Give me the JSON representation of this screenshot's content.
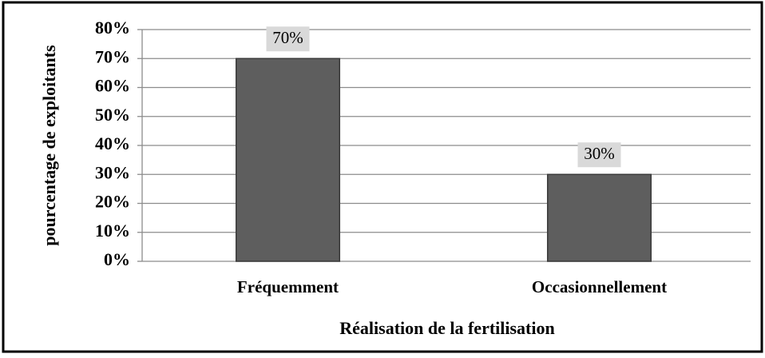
{
  "chart_data": {
    "type": "bar",
    "categories": [
      "Fréquemment",
      "Occasionnellement"
    ],
    "values": [
      70,
      30
    ],
    "value_labels": [
      "70%",
      "30%"
    ],
    "color": "#5e5e5e",
    "ylim": [
      0,
      80
    ],
    "yticks": [
      {
        "value": 0,
        "label": "0%"
      },
      {
        "value": 10,
        "label": "10%"
      },
      {
        "value": 20,
        "label": "20%"
      },
      {
        "value": 30,
        "label": "30%"
      },
      {
        "value": 40,
        "label": "40%"
      },
      {
        "value": 50,
        "label": "50%"
      },
      {
        "value": 60,
        "label": "60%"
      },
      {
        "value": 70,
        "label": "70%"
      },
      {
        "value": 80,
        "label": "80%"
      }
    ],
    "grid": true,
    "ylabel": "pourcentage de exploitants",
    "xlabel": "Réalisation de la fertilisation"
  }
}
